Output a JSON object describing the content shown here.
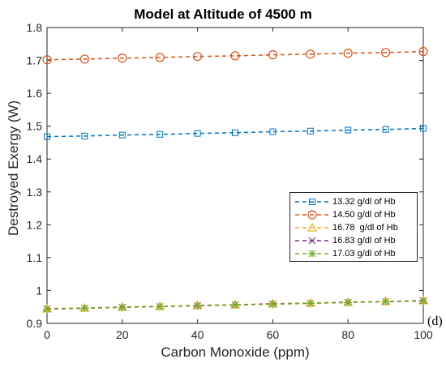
{
  "chart_data": {
    "type": "line",
    "title": "Model at Altitude of 4500 m",
    "xlabel": "Carbon Monoxide (ppm)",
    "ylabel": "Destroyed Exergy (W)",
    "panel_label": "(d)",
    "xlim": [
      0,
      100
    ],
    "ylim": [
      0.9,
      1.8
    ],
    "xticks": [
      "0",
      "20",
      "40",
      "60",
      "80",
      "100"
    ],
    "yticks": [
      "0.9",
      "1",
      "1.1",
      "1.2",
      "1.3",
      "1.4",
      "1.5",
      "1.6",
      "1.7",
      "1.8"
    ],
    "grid": false,
    "legend_position": "lower-right",
    "x": [
      0,
      10,
      20,
      30,
      40,
      50,
      60,
      70,
      80,
      90,
      100
    ],
    "series": [
      {
        "name": "13.32 g/dl of Hb",
        "marker": "square",
        "color": "#0072BD",
        "values": [
          1.468,
          1.47,
          1.473,
          1.475,
          1.478,
          1.48,
          1.483,
          1.485,
          1.488,
          1.49,
          1.493
        ]
      },
      {
        "name": "14.50 g/dl of Hb",
        "marker": "circle",
        "color": "#D95319",
        "values": [
          1.702,
          1.704,
          1.707,
          1.709,
          1.712,
          1.714,
          1.717,
          1.719,
          1.722,
          1.724,
          1.727
        ]
      },
      {
        "name": "16.78  g/dl of Hb",
        "marker": "triangle",
        "color": "#EDB120",
        "values": [
          0.945,
          0.947,
          0.95,
          0.952,
          0.955,
          0.957,
          0.96,
          0.962,
          0.965,
          0.967,
          0.97
        ]
      },
      {
        "name": "16.83 g/dl of Hb",
        "marker": "x",
        "color": "#7E2F8E",
        "values": [
          0.944,
          0.946,
          0.949,
          0.951,
          0.954,
          0.956,
          0.959,
          0.961,
          0.964,
          0.966,
          0.969
        ]
      },
      {
        "name": "17.03 g/dl of Hb",
        "marker": "star",
        "color": "#77AC30",
        "values": [
          0.943,
          0.946,
          0.948,
          0.951,
          0.953,
          0.956,
          0.958,
          0.961,
          0.963,
          0.966,
          0.968
        ]
      }
    ]
  }
}
